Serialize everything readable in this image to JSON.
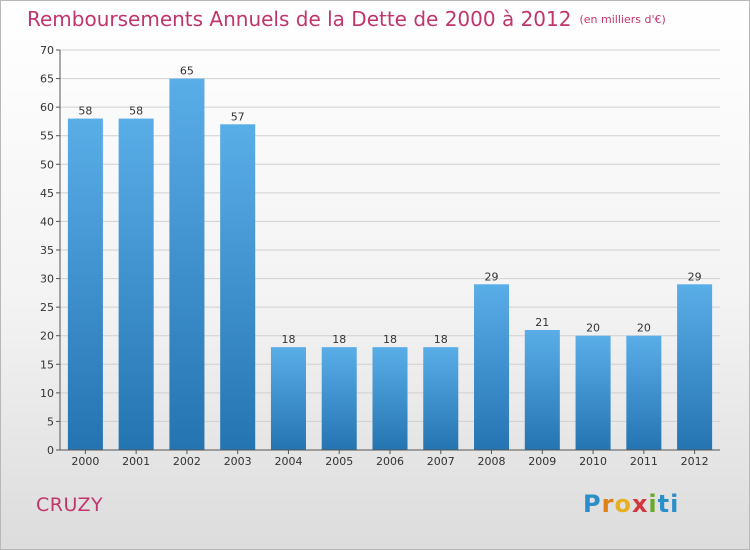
{
  "title": "Remboursements Annuels de la Dette de 2000 à 2012",
  "subtitle": "(en milliers d'€)",
  "commune": "CRUZY",
  "logo": [
    "P",
    "r",
    "o",
    "x",
    "i",
    "t",
    "i"
  ],
  "colors": {
    "bar_top": "#5aaee8",
    "bar_bottom": "#2474b2",
    "title": "#c0356d"
  },
  "chart_data": {
    "type": "bar",
    "title": "Remboursements Annuels de la Dette de 2000 à 2012",
    "subtitle": "(en milliers d'€)",
    "categories": [
      "2000",
      "2001",
      "2002",
      "2003",
      "2004",
      "2005",
      "2006",
      "2007",
      "2008",
      "2009",
      "2010",
      "2011",
      "2012"
    ],
    "values": [
      58,
      58,
      65,
      57,
      18,
      18,
      18,
      18,
      29,
      21,
      20,
      20,
      29
    ],
    "data_labels": [
      "58",
      "58",
      "65",
      "57",
      "18",
      "18",
      "18",
      "18",
      "29",
      "21",
      "20",
      "20",
      "29"
    ],
    "ylim": [
      0,
      70
    ],
    "yticks": [
      0,
      5,
      10,
      15,
      20,
      25,
      30,
      35,
      40,
      45,
      50,
      55,
      60,
      65,
      70
    ],
    "grid": true,
    "legend": "none"
  }
}
